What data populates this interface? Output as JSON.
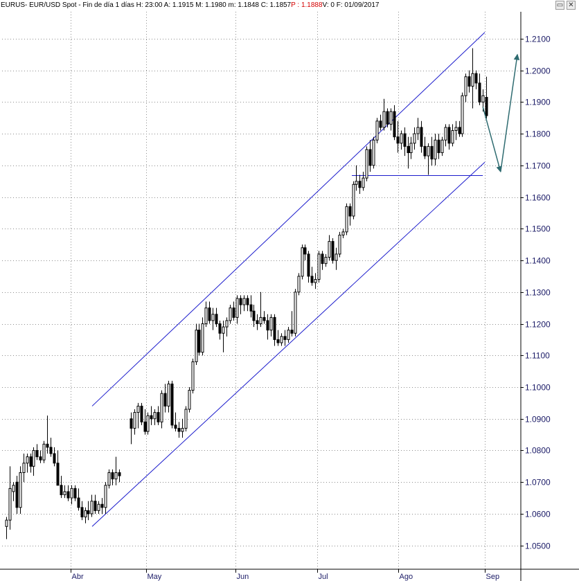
{
  "header": {
    "symbol": "EURUS",
    "info": " - EUR/USD Spot - Fin de día 1 días  H: 23:00  A: 1.1915  M: 1.1980  m: 1.1848  C: 1.1857  ",
    "p_text": "P : 1.1888",
    "tail": "  V: 0  F: 01/09/2017"
  },
  "window_buttons": {
    "restore": "▭",
    "close": "✕"
  },
  "colors": {
    "grid": "#8c8c8c",
    "channel": "#1a1acc",
    "candle": "#000000",
    "arrow": "#2e6b70",
    "axis_text": "#1a1a66"
  },
  "chart_data": {
    "type": "candlestick",
    "ylim": [
      1.0425,
      1.2185
    ],
    "yticks": [
      "1.0500",
      "1.0600",
      "1.0700",
      "1.0800",
      "1.0900",
      "1.1000",
      "1.1100",
      "1.1200",
      "1.1300",
      "1.1400",
      "1.1500",
      "1.1600",
      "1.1700",
      "1.1800",
      "1.1900",
      "1.2000",
      "1.2100"
    ],
    "xticks": [
      "Abr",
      "May",
      "Jun",
      "Jul",
      "Ago",
      "Sep"
    ],
    "candles": [
      {
        "o": 1.056,
        "h": 1.059,
        "l": 1.052,
        "c": 1.058
      },
      {
        "o": 1.058,
        "h": 1.075,
        "l": 1.055,
        "c": 1.068
      },
      {
        "o": 1.067,
        "h": 1.07,
        "l": 1.064,
        "c": 1.069
      },
      {
        "o": 1.07,
        "h": 1.072,
        "l": 1.06,
        "c": 1.062
      },
      {
        "o": 1.062,
        "h": 1.075,
        "l": 1.06,
        "c": 1.073
      },
      {
        "o": 1.073,
        "h": 1.079,
        "l": 1.07,
        "c": 1.076
      },
      {
        "o": 1.076,
        "h": 1.079,
        "l": 1.073,
        "c": 1.078
      },
      {
        "o": 1.078,
        "h": 1.079,
        "l": 1.073,
        "c": 1.075
      },
      {
        "o": 1.075,
        "h": 1.081,
        "l": 1.072,
        "c": 1.08
      },
      {
        "o": 1.08,
        "h": 1.082,
        "l": 1.077,
        "c": 1.078
      },
      {
        "o": 1.078,
        "h": 1.08,
        "l": 1.076,
        "c": 1.077
      },
      {
        "o": 1.077,
        "h": 1.083,
        "l": 1.076,
        "c": 1.082
      },
      {
        "o": 1.082,
        "h": 1.091,
        "l": 1.079,
        "c": 1.081
      },
      {
        "o": 1.081,
        "h": 1.084,
        "l": 1.078,
        "c": 1.079
      },
      {
        "o": 1.079,
        "h": 1.081,
        "l": 1.075,
        "c": 1.076
      },
      {
        "o": 1.076,
        "h": 1.08,
        "l": 1.07,
        "c": 1.069
      },
      {
        "o": 1.069,
        "h": 1.072,
        "l": 1.065,
        "c": 1.066
      },
      {
        "o": 1.066,
        "h": 1.069,
        "l": 1.065,
        "c": 1.067
      },
      {
        "o": 1.067,
        "h": 1.069,
        "l": 1.064,
        "c": 1.065
      },
      {
        "o": 1.065,
        "h": 1.069,
        "l": 1.063,
        "c": 1.068
      },
      {
        "o": 1.068,
        "h": 1.069,
        "l": 1.064,
        "c": 1.065
      },
      {
        "o": 1.065,
        "h": 1.068,
        "l": 1.061,
        "c": 1.062
      },
      {
        "o": 1.062,
        "h": 1.064,
        "l": 1.058,
        "c": 1.059
      },
      {
        "o": 1.059,
        "h": 1.062,
        "l": 1.057,
        "c": 1.061
      },
      {
        "o": 1.061,
        "h": 1.064,
        "l": 1.058,
        "c": 1.06
      },
      {
        "o": 1.06,
        "h": 1.066,
        "l": 1.059,
        "c": 1.064
      },
      {
        "o": 1.064,
        "h": 1.066,
        "l": 1.06,
        "c": 1.061
      },
      {
        "o": 1.061,
        "h": 1.064,
        "l": 1.06,
        "c": 1.063
      },
      {
        "o": 1.063,
        "h": 1.065,
        "l": 1.06,
        "c": 1.062
      },
      {
        "o": 1.062,
        "h": 1.07,
        "l": 1.06,
        "c": 1.069
      },
      {
        "o": 1.069,
        "h": 1.074,
        "l": 1.068,
        "c": 1.073
      },
      {
        "o": 1.073,
        "h": 1.074,
        "l": 1.069,
        "c": 1.071
      },
      {
        "o": 1.071,
        "h": 1.078,
        "l": 1.069,
        "c": 1.073
      },
      {
        "o": 1.073,
        "h": 1.074,
        "l": 1.07,
        "c": 1.072
      },
      {
        "o": 1.09,
        "h": 1.092,
        "l": 1.082,
        "c": 1.087
      },
      {
        "o": 1.087,
        "h": 1.093,
        "l": 1.085,
        "c": 1.092
      },
      {
        "o": 1.092,
        "h": 1.095,
        "l": 1.087,
        "c": 1.094
      },
      {
        "o": 1.094,
        "h": 1.095,
        "l": 1.088,
        "c": 1.089
      },
      {
        "o": 1.089,
        "h": 1.093,
        "l": 1.085,
        "c": 1.086
      },
      {
        "o": 1.086,
        "h": 1.092,
        "l": 1.085,
        "c": 1.091
      },
      {
        "o": 1.091,
        "h": 1.094,
        "l": 1.088,
        "c": 1.09
      },
      {
        "o": 1.09,
        "h": 1.093,
        "l": 1.088,
        "c": 1.092
      },
      {
        "o": 1.092,
        "h": 1.094,
        "l": 1.088,
        "c": 1.089
      },
      {
        "o": 1.089,
        "h": 1.099,
        "l": 1.087,
        "c": 1.098
      },
      {
        "o": 1.098,
        "h": 1.101,
        "l": 1.092,
        "c": 1.094
      },
      {
        "o": 1.094,
        "h": 1.102,
        "l": 1.092,
        "c": 1.101
      },
      {
        "o": 1.101,
        "h": 1.102,
        "l": 1.087,
        "c": 1.088
      },
      {
        "o": 1.088,
        "h": 1.092,
        "l": 1.086,
        "c": 1.087
      },
      {
        "o": 1.087,
        "h": 1.089,
        "l": 1.084,
        "c": 1.086
      },
      {
        "o": 1.086,
        "h": 1.09,
        "l": 1.084,
        "c": 1.087
      },
      {
        "o": 1.087,
        "h": 1.094,
        "l": 1.086,
        "c": 1.093
      },
      {
        "o": 1.093,
        "h": 1.1,
        "l": 1.092,
        "c": 1.099
      },
      {
        "o": 1.099,
        "h": 1.109,
        "l": 1.098,
        "c": 1.108
      },
      {
        "o": 1.108,
        "h": 1.12,
        "l": 1.107,
        "c": 1.118
      },
      {
        "o": 1.118,
        "h": 1.12,
        "l": 1.11,
        "c": 1.111
      },
      {
        "o": 1.111,
        "h": 1.122,
        "l": 1.11,
        "c": 1.12
      },
      {
        "o": 1.12,
        "h": 1.127,
        "l": 1.119,
        "c": 1.125
      },
      {
        "o": 1.125,
        "h": 1.127,
        "l": 1.12,
        "c": 1.121
      },
      {
        "o": 1.121,
        "h": 1.125,
        "l": 1.118,
        "c": 1.123
      },
      {
        "o": 1.123,
        "h": 1.125,
        "l": 1.119,
        "c": 1.12
      },
      {
        "o": 1.12,
        "h": 1.121,
        "l": 1.115,
        "c": 1.117
      },
      {
        "o": 1.117,
        "h": 1.121,
        "l": 1.111,
        "c": 1.119
      },
      {
        "o": 1.119,
        "h": 1.122,
        "l": 1.116,
        "c": 1.121
      },
      {
        "o": 1.121,
        "h": 1.126,
        "l": 1.12,
        "c": 1.125
      },
      {
        "o": 1.125,
        "h": 1.127,
        "l": 1.121,
        "c": 1.122
      },
      {
        "o": 1.122,
        "h": 1.129,
        "l": 1.12,
        "c": 1.128
      },
      {
        "o": 1.128,
        "h": 1.129,
        "l": 1.123,
        "c": 1.126
      },
      {
        "o": 1.126,
        "h": 1.129,
        "l": 1.124,
        "c": 1.128
      },
      {
        "o": 1.128,
        "h": 1.129,
        "l": 1.124,
        "c": 1.126
      },
      {
        "o": 1.126,
        "h": 1.129,
        "l": 1.122,
        "c": 1.124
      },
      {
        "o": 1.124,
        "h": 1.126,
        "l": 1.119,
        "c": 1.121
      },
      {
        "o": 1.121,
        "h": 1.123,
        "l": 1.118,
        "c": 1.12
      },
      {
        "o": 1.12,
        "h": 1.13,
        "l": 1.119,
        "c": 1.122
      },
      {
        "o": 1.122,
        "h": 1.124,
        "l": 1.12,
        "c": 1.121
      },
      {
        "o": 1.121,
        "h": 1.123,
        "l": 1.115,
        "c": 1.118
      },
      {
        "o": 1.118,
        "h": 1.123,
        "l": 1.116,
        "c": 1.122
      },
      {
        "o": 1.122,
        "h": 1.123,
        "l": 1.113,
        "c": 1.115
      },
      {
        "o": 1.115,
        "h": 1.118,
        "l": 1.113,
        "c": 1.114
      },
      {
        "o": 1.114,
        "h": 1.117,
        "l": 1.113,
        "c": 1.116
      },
      {
        "o": 1.116,
        "h": 1.118,
        "l": 1.113,
        "c": 1.115
      },
      {
        "o": 1.115,
        "h": 1.119,
        "l": 1.114,
        "c": 1.118
      },
      {
        "o": 1.118,
        "h": 1.124,
        "l": 1.116,
        "c": 1.117
      },
      {
        "o": 1.117,
        "h": 1.131,
        "l": 1.116,
        "c": 1.13
      },
      {
        "o": 1.13,
        "h": 1.136,
        "l": 1.129,
        "c": 1.135
      },
      {
        "o": 1.135,
        "h": 1.145,
        "l": 1.134,
        "c": 1.144
      },
      {
        "o": 1.144,
        "h": 1.145,
        "l": 1.14,
        "c": 1.142
      },
      {
        "o": 1.142,
        "h": 1.143,
        "l": 1.133,
        "c": 1.135
      },
      {
        "o": 1.135,
        "h": 1.138,
        "l": 1.132,
        "c": 1.133
      },
      {
        "o": 1.133,
        "h": 1.136,
        "l": 1.131,
        "c": 1.134
      },
      {
        "o": 1.134,
        "h": 1.143,
        "l": 1.133,
        "c": 1.142
      },
      {
        "o": 1.142,
        "h": 1.143,
        "l": 1.137,
        "c": 1.139
      },
      {
        "o": 1.139,
        "h": 1.142,
        "l": 1.138,
        "c": 1.141
      },
      {
        "o": 1.141,
        "h": 1.148,
        "l": 1.14,
        "c": 1.146
      },
      {
        "o": 1.146,
        "h": 1.147,
        "l": 1.139,
        "c": 1.14
      },
      {
        "o": 1.14,
        "h": 1.144,
        "l": 1.137,
        "c": 1.142
      },
      {
        "o": 1.142,
        "h": 1.149,
        "l": 1.141,
        "c": 1.148
      },
      {
        "o": 1.148,
        "h": 1.15,
        "l": 1.147,
        "c": 1.149
      },
      {
        "o": 1.149,
        "h": 1.158,
        "l": 1.148,
        "c": 1.157
      },
      {
        "o": 1.157,
        "h": 1.158,
        "l": 1.151,
        "c": 1.154
      },
      {
        "o": 1.154,
        "h": 1.165,
        "l": 1.153,
        "c": 1.164
      },
      {
        "o": 1.164,
        "h": 1.17,
        "l": 1.162,
        "c": 1.165
      },
      {
        "o": 1.165,
        "h": 1.167,
        "l": 1.161,
        "c": 1.163
      },
      {
        "o": 1.163,
        "h": 1.168,
        "l": 1.162,
        "c": 1.166
      },
      {
        "o": 1.166,
        "h": 1.176,
        "l": 1.165,
        "c": 1.175
      },
      {
        "o": 1.175,
        "h": 1.178,
        "l": 1.168,
        "c": 1.17
      },
      {
        "o": 1.17,
        "h": 1.179,
        "l": 1.169,
        "c": 1.178
      },
      {
        "o": 1.178,
        "h": 1.185,
        "l": 1.177,
        "c": 1.184
      },
      {
        "o": 1.184,
        "h": 1.186,
        "l": 1.181,
        "c": 1.182
      },
      {
        "o": 1.182,
        "h": 1.191,
        "l": 1.181,
        "c": 1.187
      },
      {
        "o": 1.187,
        "h": 1.188,
        "l": 1.182,
        "c": 1.183
      },
      {
        "o": 1.183,
        "h": 1.188,
        "l": 1.181,
        "c": 1.187
      },
      {
        "o": 1.187,
        "h": 1.189,
        "l": 1.178,
        "c": 1.179
      },
      {
        "o": 1.179,
        "h": 1.184,
        "l": 1.174,
        "c": 1.177
      },
      {
        "o": 1.177,
        "h": 1.181,
        "l": 1.175,
        "c": 1.18
      },
      {
        "o": 1.18,
        "h": 1.182,
        "l": 1.173,
        "c": 1.176
      },
      {
        "o": 1.176,
        "h": 1.179,
        "l": 1.169,
        "c": 1.174
      },
      {
        "o": 1.174,
        "h": 1.179,
        "l": 1.172,
        "c": 1.177
      },
      {
        "o": 1.177,
        "h": 1.182,
        "l": 1.175,
        "c": 1.18
      },
      {
        "o": 1.18,
        "h": 1.185,
        "l": 1.178,
        "c": 1.182
      },
      {
        "o": 1.182,
        "h": 1.184,
        "l": 1.174,
        "c": 1.176
      },
      {
        "o": 1.176,
        "h": 1.179,
        "l": 1.172,
        "c": 1.173
      },
      {
        "o": 1.173,
        "h": 1.177,
        "l": 1.167,
        "c": 1.176
      },
      {
        "o": 1.176,
        "h": 1.179,
        "l": 1.17,
        "c": 1.172
      },
      {
        "o": 1.172,
        "h": 1.18,
        "l": 1.17,
        "c": 1.178
      },
      {
        "o": 1.178,
        "h": 1.18,
        "l": 1.172,
        "c": 1.174
      },
      {
        "o": 1.174,
        "h": 1.179,
        "l": 1.173,
        "c": 1.178
      },
      {
        "o": 1.178,
        "h": 1.183,
        "l": 1.176,
        "c": 1.182
      },
      {
        "o": 1.182,
        "h": 1.183,
        "l": 1.175,
        "c": 1.177
      },
      {
        "o": 1.177,
        "h": 1.183,
        "l": 1.176,
        "c": 1.181
      },
      {
        "o": 1.181,
        "h": 1.184,
        "l": 1.178,
        "c": 1.182
      },
      {
        "o": 1.182,
        "h": 1.184,
        "l": 1.179,
        "c": 1.18
      },
      {
        "o": 1.18,
        "h": 1.193,
        "l": 1.179,
        "c": 1.192
      },
      {
        "o": 1.192,
        "h": 1.199,
        "l": 1.19,
        "c": 1.198
      },
      {
        "o": 1.198,
        "h": 1.2,
        "l": 1.193,
        "c": 1.195
      },
      {
        "o": 1.195,
        "h": 1.207,
        "l": 1.188,
        "c": 1.199
      },
      {
        "o": 1.199,
        "h": 1.2,
        "l": 1.194,
        "c": 1.196
      },
      {
        "o": 1.196,
        "h": 1.199,
        "l": 1.189,
        "c": 1.19
      },
      {
        "o": 1.19,
        "h": 1.194,
        "l": 1.187,
        "c": 1.192
      },
      {
        "o": 1.1915,
        "h": 1.198,
        "l": 1.1848,
        "c": 1.1857
      }
    ],
    "gap_after_index": 33,
    "channel": {
      "upper": {
        "from": [
          0.0,
          1.094
        ],
        "to": [
          1.0,
          1.212
        ]
      },
      "lower": {
        "from": [
          0.0,
          1.056
        ],
        "to": [
          1.0,
          1.171
        ]
      }
    },
    "support": {
      "price": 1.1668,
      "from_frac": 0.72,
      "to_frac": 0.993
    },
    "projection": [
      [
        0.993,
        1.1885
      ],
      [
        1.03,
        1.168
      ],
      [
        1.065,
        1.205
      ]
    ],
    "grid": "dotted"
  }
}
